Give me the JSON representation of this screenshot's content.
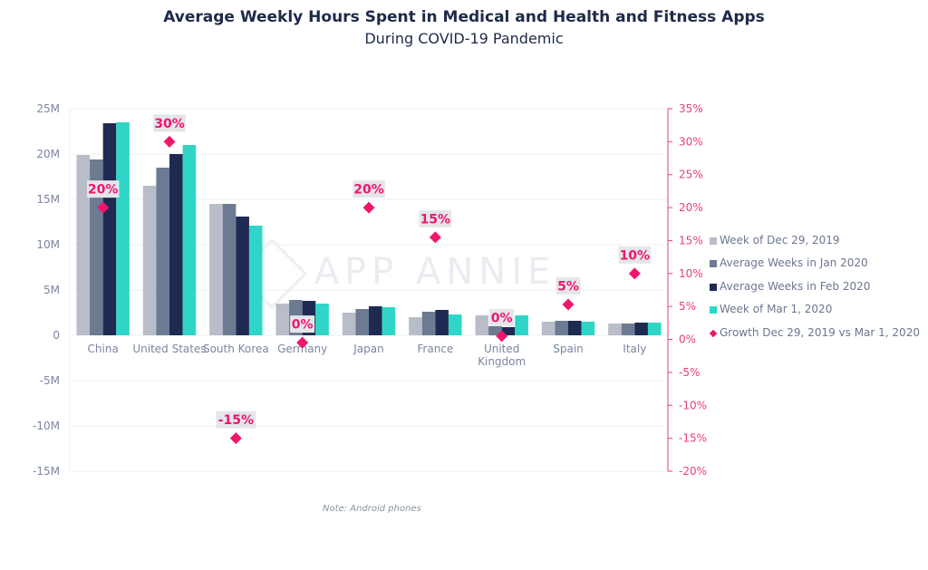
{
  "header": {
    "title": "Average Weekly Hours Spent in Medical and Health and Fitness Apps",
    "subtitle": "During COVID-19 Pandemic"
  },
  "footer": {
    "note": "Note: Android phones"
  },
  "watermark": "APP ANNIE",
  "colors": {
    "dec29": "#b9bdc9",
    "jan": "#6c7a92",
    "feb": "#1e2a52",
    "mar1": "#2fd6c7",
    "growth": "#f0166c",
    "label_bg": "#e4e6ea",
    "axis_right": "#e83e7c",
    "axis_left": "#7b86a0",
    "gridline": "#eef0f3"
  },
  "chart_data": {
    "type": "bar",
    "categories": [
      "China",
      "United States",
      "South Korea",
      "Germany",
      "Japan",
      "France",
      "United Kingdom",
      "Spain",
      "Italy"
    ],
    "category_labels": [
      [
        "China"
      ],
      [
        "United States"
      ],
      [
        "South Korea"
      ],
      [
        "Germany"
      ],
      [
        "Japan"
      ],
      [
        "France"
      ],
      [
        "United",
        "Kingdom"
      ],
      [
        "Spain"
      ],
      [
        "Italy"
      ]
    ],
    "series": [
      {
        "name": "Week of Dec 29, 2019",
        "values": [
          19.9,
          16.5,
          14.5,
          3.5,
          2.5,
          2.0,
          2.2,
          1.5,
          1.3
        ]
      },
      {
        "name": "Average Weeks in Jan 2020",
        "values": [
          19.4,
          18.5,
          14.5,
          3.9,
          2.9,
          2.6,
          1.0,
          1.6,
          1.3
        ]
      },
      {
        "name": "Average Weeks in Feb 2020",
        "values": [
          23.4,
          20.0,
          13.1,
          3.8,
          3.2,
          2.8,
          0.9,
          1.6,
          1.4
        ]
      },
      {
        "name": "Week of Mar 1, 2020",
        "values": [
          23.5,
          21.0,
          12.1,
          3.5,
          3.1,
          2.3,
          2.2,
          1.5,
          1.4
        ]
      }
    ],
    "growth": {
      "name": "Growth Dec 29, 2019 vs Mar 1, 2020",
      "values": [
        20,
        30,
        -15,
        0,
        20,
        15,
        0,
        5,
        10
      ],
      "marker_values": [
        20,
        30,
        -15,
        -0.5,
        20,
        15.5,
        0.5,
        5.3,
        10
      ],
      "labels": [
        "20%",
        "30%",
        "-15%",
        "0%",
        "20%",
        "15%",
        "0%",
        "5%",
        "10%"
      ]
    },
    "y_left": {
      "ylim": [
        -15,
        25
      ],
      "ticks": [
        25,
        20,
        15,
        10,
        5,
        0,
        -5,
        -10,
        -15
      ],
      "tick_labels": [
        "25M",
        "20M",
        "15M",
        "10M",
        "5M",
        "0",
        "-5M",
        "-10M",
        "-15M"
      ]
    },
    "y_right": {
      "ylim": [
        -20,
        35
      ],
      "ticks": [
        35,
        30,
        25,
        20,
        15,
        10,
        5,
        0,
        -5,
        -10,
        -15,
        -20
      ],
      "tick_labels": [
        "35%",
        "30%",
        "25%",
        "20%",
        "15%",
        "10%",
        "5%",
        "0%",
        "-5%",
        "-10%",
        "-15%",
        "-20%"
      ]
    },
    "legend_position": "right",
    "grid": true
  }
}
